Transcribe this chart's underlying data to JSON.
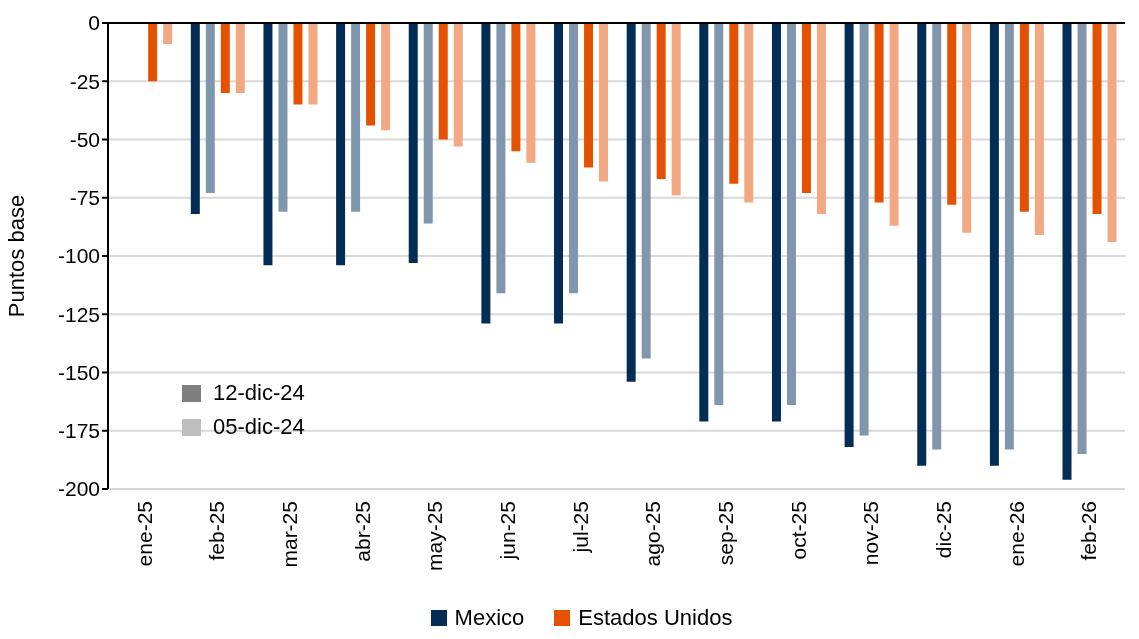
{
  "chart_data": {
    "type": "bar",
    "ylabel": "Puntos base",
    "categories": [
      "ene-25",
      "feb-25",
      "mar-25",
      "abr-25",
      "may-25",
      "jun-25",
      "jul-25",
      "ago-25",
      "sep-25",
      "oct-25",
      "nov-25",
      "dic-25",
      "ene-26",
      "feb-26"
    ],
    "series": [
      {
        "name": "Mexico",
        "color": "#032d55",
        "values": [
          null,
          -82,
          -104,
          -104,
          -103,
          -129,
          -129,
          -154,
          -171,
          -171,
          -182,
          -190,
          -190,
          -196
        ]
      },
      {
        "color": "#8096ad",
        "values": [
          null,
          -73,
          -81,
          -81,
          -86,
          -116,
          -116,
          -144,
          -164,
          -164,
          -177,
          -183,
          -183,
          -185
        ]
      },
      {
        "name": "Estados Unidos",
        "color": "#e45100",
        "values": [
          -25,
          -30,
          -35,
          -44,
          -50,
          -55,
          -62,
          -67,
          -69,
          -73,
          -77,
          -78,
          -81,
          -82
        ]
      },
      {
        "color": "#f2a882",
        "values": [
          -9,
          -30,
          -35,
          -46,
          -53,
          -60,
          -68,
          -74,
          -77,
          -82,
          -87,
          -90,
          -91,
          -94
        ]
      }
    ],
    "annotations": [
      "12-dic-24",
      "05-dic-24"
    ],
    "ylim": [
      -200,
      0
    ],
    "yticks": [
      0,
      -25,
      -50,
      -75,
      -100,
      -125,
      -150,
      -175,
      -200
    ],
    "grid": "y",
    "legend": "bottom"
  }
}
